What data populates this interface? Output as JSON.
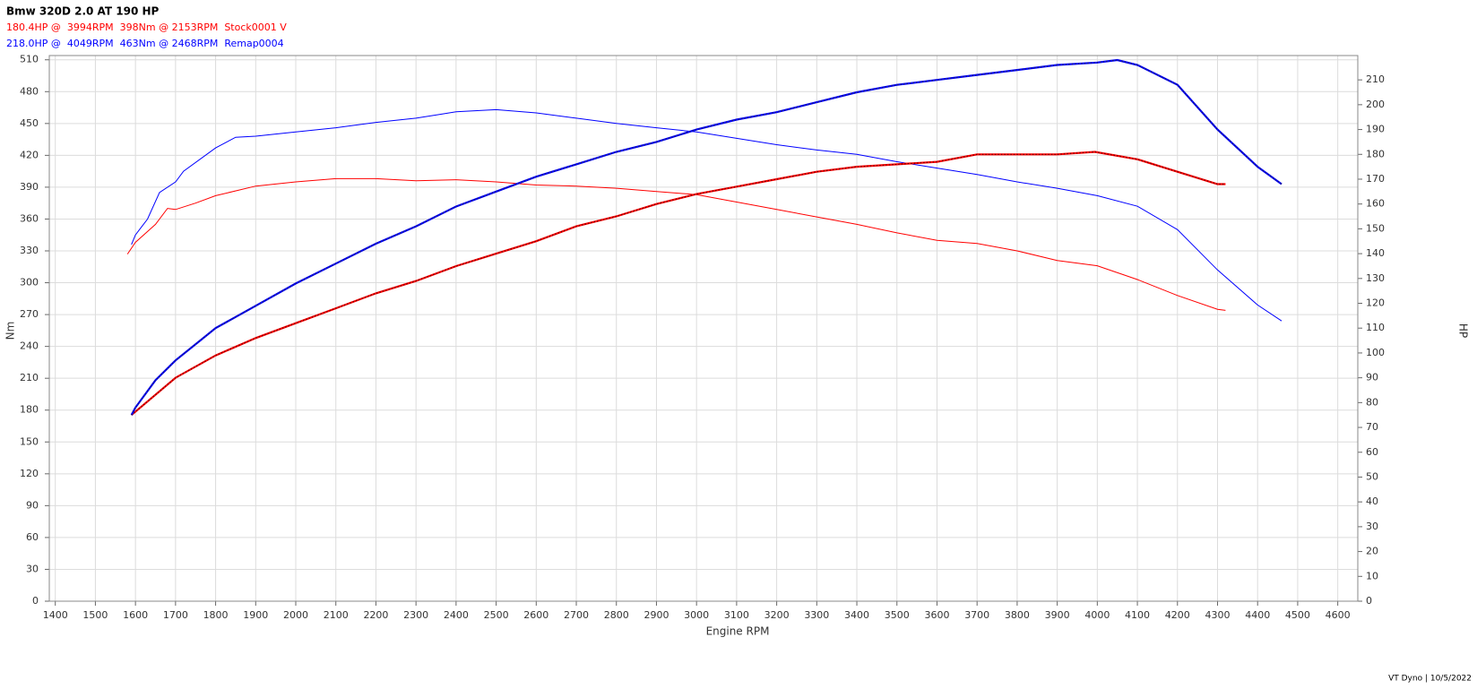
{
  "chart_data": {
    "type": "line",
    "title": "Bmw 320D 2.0 AT 190 HP",
    "subtitles": [
      {
        "text": "180.4HP @  3994RPM  398Nm @ 2153RPM  Stock0001 V",
        "color": "#ff0000"
      },
      {
        "text": "218.0HP @  4049RPM  463Nm @ 2468RPM  Remap0004",
        "color": "#0000ff"
      }
    ],
    "x_label": "Engine RPM",
    "y_label": "Nm",
    "y2_label": "HP",
    "footer": "VT Dyno | 10/5/2022",
    "grid": true,
    "xlim": [
      1385,
      4650
    ],
    "ylim": [
      0,
      514
    ],
    "y2lim": [
      0,
      219.8
    ],
    "xticks": [
      1400,
      1500,
      1600,
      1700,
      1800,
      1900,
      2000,
      2100,
      2200,
      2300,
      2400,
      2500,
      2600,
      2700,
      2800,
      2900,
      3000,
      3100,
      3200,
      3300,
      3400,
      3500,
      3600,
      3700,
      3800,
      3900,
      4000,
      4100,
      4200,
      4300,
      4400,
      4500,
      4600
    ],
    "yticks": [
      0,
      30,
      60,
      90,
      120,
      150,
      180,
      210,
      240,
      270,
      300,
      330,
      360,
      390,
      420,
      450,
      480,
      510
    ],
    "y2ticks": [
      0,
      10,
      20,
      30,
      40,
      50,
      60,
      70,
      80,
      90,
      100,
      110,
      120,
      130,
      140,
      150,
      160,
      170,
      180,
      190,
      200,
      210
    ],
    "series": [
      {
        "name": "Stock0001 V Nm",
        "color": "#ff0000",
        "x": [
          1580,
          1600,
          1650,
          1680,
          1700,
          1750,
          1800,
          1900,
          2000,
          2100,
          2200,
          2300,
          2400,
          2500,
          2600,
          2700,
          2800,
          2900,
          3000,
          3100,
          3200,
          3300,
          3400,
          3500,
          3600,
          3700,
          3800,
          3900,
          4000,
          4100,
          4200,
          4300,
          4320
        ],
        "values": [
          327,
          338,
          355,
          370,
          369,
          375,
          382,
          391,
          395,
          398,
          398,
          396,
          397,
          395,
          392,
          391,
          389,
          386,
          383,
          376,
          369,
          362,
          355,
          347,
          340,
          337,
          330,
          321,
          316,
          303,
          288,
          275,
          274
        ]
      },
      {
        "name": "Remap0004 Nm",
        "color": "#0000ff",
        "x": [
          1590,
          1600,
          1630,
          1660,
          1700,
          1720,
          1800,
          1850,
          1900,
          2000,
          2100,
          2200,
          2300,
          2400,
          2500,
          2600,
          2700,
          2800,
          2900,
          3000,
          3100,
          3200,
          3300,
          3400,
          3500,
          3600,
          3700,
          3800,
          3900,
          4000,
          4100,
          4200,
          4300,
          4400,
          4460
        ],
        "values": [
          336,
          345,
          360,
          385,
          395,
          405,
          427,
          437,
          438,
          442,
          446,
          451,
          455,
          461,
          463,
          460,
          455,
          450,
          446,
          442,
          436,
          430,
          425,
          421,
          414,
          408,
          402,
          395,
          389,
          382,
          372,
          350,
          312,
          279,
          264
        ]
      },
      {
        "name": "Stock0001 V HP",
        "color": "#ff0000",
        "dot_color": "#600000",
        "axis": "y2",
        "x": [
          1590,
          1700,
          1800,
          1900,
          2000,
          2100,
          2200,
          2300,
          2400,
          2500,
          2600,
          2700,
          2800,
          2900,
          3000,
          3100,
          3200,
          3300,
          3400,
          3500,
          3600,
          3700,
          3800,
          3900,
          3994,
          4100,
          4200,
          4300,
          4320
        ],
        "values": [
          75,
          90,
          99,
          106,
          112,
          118,
          124,
          129,
          135,
          140,
          145,
          151,
          155,
          160,
          164,
          167,
          170,
          173,
          175,
          176,
          177,
          180,
          180,
          180,
          181,
          178,
          173,
          168,
          168
        ]
      },
      {
        "name": "Remap0004 HP",
        "color": "#0000ff",
        "dot_color": "#202060",
        "axis": "y2",
        "x": [
          1590,
          1600,
          1650,
          1700,
          1800,
          1900,
          2000,
          2100,
          2200,
          2300,
          2400,
          2500,
          2600,
          2700,
          2800,
          2900,
          3000,
          3100,
          3200,
          3300,
          3400,
          3500,
          3600,
          3700,
          3800,
          3900,
          4000,
          4050,
          4100,
          4200,
          4300,
          4400,
          4460
        ],
        "values": [
          75,
          78,
          89,
          97,
          110,
          119,
          128,
          136,
          144,
          151,
          159,
          165,
          171,
          176,
          181,
          185,
          190,
          194,
          197,
          201,
          205,
          208,
          210,
          212,
          214,
          216,
          217,
          218,
          216,
          208,
          190,
          175,
          168
        ]
      }
    ]
  }
}
